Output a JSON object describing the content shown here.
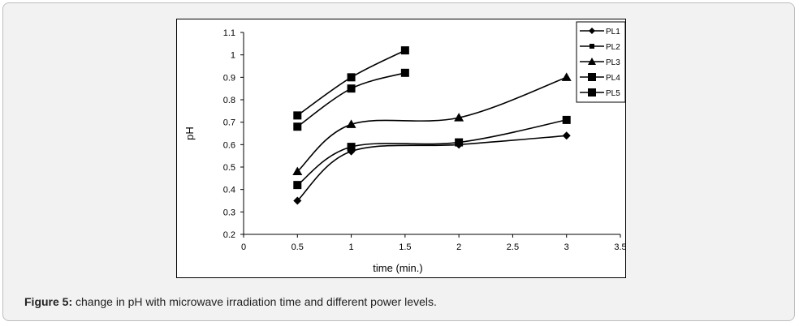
{
  "caption": {
    "lead": "Figure 5:",
    "text": " change in pH with microwave irradiation time and different power levels."
  },
  "chart_data": {
    "type": "line",
    "xlabel": "time (min.)",
    "ylabel": "pH",
    "xlim": [
      0,
      3.5
    ],
    "ylim": [
      0.2,
      1.1
    ],
    "x_ticks": [
      "0",
      "0.5",
      "1",
      "1.5",
      "2",
      "2.5",
      "3",
      "3.5"
    ],
    "y_ticks": [
      "0.2",
      "0.3",
      "0.4",
      "0.5",
      "0.6",
      "0.7",
      "0.8",
      "0.9",
      "1",
      "1.1"
    ],
    "grid": false,
    "legend_position": "top-right",
    "series": [
      {
        "name": "PL1",
        "marker": "diamond",
        "x": [
          0.5,
          1,
          2,
          3
        ],
        "y": [
          0.35,
          0.57,
          0.6,
          0.64
        ]
      },
      {
        "name": "PL2",
        "marker": "square-small",
        "x": [
          0.5,
          1,
          2,
          3
        ],
        "y": [
          0.42,
          0.59,
          0.61,
          0.71
        ]
      },
      {
        "name": "PL3",
        "marker": "triangle",
        "x": [
          0.5,
          1,
          2,
          3
        ],
        "y": [
          0.48,
          0.69,
          0.72,
          0.9
        ]
      },
      {
        "name": "PL4",
        "marker": "square",
        "x": [
          0.5,
          1,
          1.5
        ],
        "y": [
          0.68,
          0.85,
          0.92
        ]
      },
      {
        "name": "PL5",
        "marker": "square",
        "x": [
          0.5,
          1,
          1.5
        ],
        "y": [
          0.73,
          0.9,
          1.02
        ]
      }
    ]
  }
}
